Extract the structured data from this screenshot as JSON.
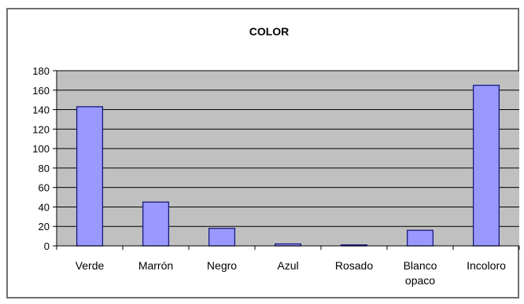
{
  "chart_data": {
    "type": "bar",
    "title": "COLOR",
    "categories": [
      [
        "Verde"
      ],
      [
        "Marrón"
      ],
      [
        "Negro"
      ],
      [
        "Azul"
      ],
      [
        "Rosado"
      ],
      [
        "Blanco",
        "opaco"
      ],
      [
        "Incoloro"
      ]
    ],
    "values": [
      143,
      45,
      18,
      2,
      1,
      16,
      165
    ],
    "ylim": [
      0,
      180
    ],
    "yticks": [
      0,
      20,
      40,
      60,
      80,
      100,
      120,
      140,
      160,
      180
    ],
    "grid": true,
    "colors": {
      "bar_fill": "#9999ff",
      "bar_stroke": "#1a1a80",
      "plot_background": "#c0c0c0",
      "gridline": "#000000"
    }
  }
}
